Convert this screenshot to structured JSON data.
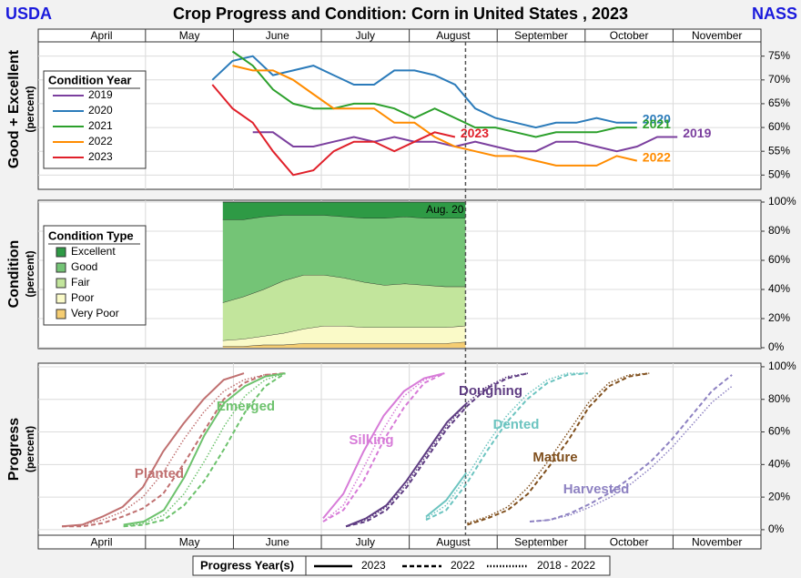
{
  "header": {
    "left": "USDA",
    "title": "Crop Progress and Condition: Corn in United States , 2023",
    "right": "NASS"
  },
  "chart_data": [
    {
      "type": "line",
      "ylabel": "Good + Excellent",
      "ylabel_sub": "(percent)",
      "legend_title": "Condition Year",
      "xlim": [
        3.78,
        12.0
      ],
      "xticks": [
        {
          "value": 4.5,
          "label": "April"
        },
        {
          "value": 5.5,
          "label": "May"
        },
        {
          "value": 6.5,
          "label": "June"
        },
        {
          "value": 7.5,
          "label": "July"
        },
        {
          "value": 8.5,
          "label": "August"
        },
        {
          "value": 9.5,
          "label": "September"
        },
        {
          "value": 10.5,
          "label": "October"
        },
        {
          "value": 11.5,
          "label": "November"
        }
      ],
      "ylim": [
        47,
        78
      ],
      "yticks": [
        {
          "value": 50,
          "label": "50%"
        },
        {
          "value": 55,
          "label": "55%"
        },
        {
          "value": 60,
          "label": "60%"
        },
        {
          "value": 65,
          "label": "65%"
        },
        {
          "value": 70,
          "label": "70%"
        },
        {
          "value": 75,
          "label": "75%"
        }
      ],
      "x": [
        5.76,
        5.99,
        6.22,
        6.45,
        6.68,
        6.91,
        7.14,
        7.37,
        7.6,
        7.83,
        8.06,
        8.29,
        8.52,
        8.75,
        8.98,
        9.21,
        9.44,
        9.67,
        9.9,
        10.13,
        10.36,
        10.59,
        10.82,
        11.05
      ],
      "series": [
        {
          "name": "2019",
          "color": "#7b3f9e",
          "values": [
            null,
            null,
            59,
            59,
            56,
            56,
            57,
            58,
            57,
            58,
            57,
            57,
            56,
            57,
            56,
            55,
            55,
            57,
            57,
            56,
            55,
            56,
            58,
            58
          ]
        },
        {
          "name": "2020",
          "color": "#2b7bba",
          "values": [
            70,
            74,
            75,
            71,
            72,
            73,
            71,
            69,
            69,
            72,
            72,
            71,
            69,
            64,
            62,
            61,
            60,
            61,
            61,
            62,
            61,
            61,
            null,
            null
          ]
        },
        {
          "name": "2021",
          "color": "#2ca02c",
          "values": [
            null,
            76,
            73,
            68,
            65,
            64,
            64,
            65,
            65,
            64,
            62,
            64,
            62,
            60,
            60,
            59,
            58,
            59,
            59,
            59,
            60,
            60,
            null,
            null
          ]
        },
        {
          "name": "2022",
          "color": "#ff8c00",
          "values": [
            null,
            73,
            72,
            72,
            70,
            67,
            64,
            64,
            64,
            61,
            61,
            58,
            56,
            55,
            54,
            54,
            53,
            52,
            52,
            52,
            54,
            53,
            null,
            null
          ]
        },
        {
          "name": "2023",
          "color": "#e0202a",
          "values": [
            69,
            64,
            61,
            55,
            50,
            51,
            55,
            57,
            57,
            55,
            57,
            59,
            58,
            null,
            null,
            null,
            null,
            null,
            null,
            null,
            null,
            null,
            null,
            null
          ]
        }
      ]
    },
    {
      "type": "stacked_area",
      "ylabel": "Condition",
      "ylabel_sub": "(percent)",
      "legend_title": "Condition Type",
      "annotation": "Aug. 20",
      "xlim": [
        3.78,
        12.0
      ],
      "ylim": [
        0,
        100
      ],
      "yticks": [
        {
          "value": 0,
          "label": "0%"
        },
        {
          "value": 20,
          "label": "20%"
        },
        {
          "value": 40,
          "label": "40%"
        },
        {
          "value": 60,
          "label": "60%"
        },
        {
          "value": 80,
          "label": "80%"
        },
        {
          "value": 100,
          "label": "100%"
        }
      ],
      "x": [
        5.88,
        6.11,
        6.34,
        6.57,
        6.8,
        7.03,
        7.26,
        7.49,
        7.72,
        7.95,
        8.18,
        8.41,
        8.64
      ],
      "series": [
        {
          "name": "Excellent",
          "color": "#2e9a45",
          "values": [
            12,
            12,
            10,
            9,
            9,
            9,
            10,
            11,
            11,
            10,
            11,
            11,
            11
          ]
        },
        {
          "name": "Good",
          "color": "#74c476",
          "values": [
            57,
            53,
            50,
            45,
            41,
            41,
            42,
            44,
            46,
            46,
            46,
            47,
            47
          ]
        },
        {
          "name": "Fair",
          "color": "#c2e59c",
          "values": [
            26,
            29,
            32,
            36,
            37,
            35,
            33,
            31,
            29,
            30,
            29,
            28,
            27
          ]
        },
        {
          "name": "Poor",
          "color": "#fafac8",
          "values": [
            4,
            5,
            6,
            8,
            10,
            12,
            12,
            11,
            11,
            11,
            11,
            11,
            11
          ]
        },
        {
          "name": "Very Poor",
          "color": "#f5cd72",
          "values": [
            1,
            1,
            2,
            2,
            3,
            3,
            3,
            3,
            3,
            3,
            3,
            3,
            4
          ]
        }
      ]
    },
    {
      "type": "progress",
      "ylabel": "Progress",
      "ylabel_sub": "(percent)",
      "legend_title": "Progress Year(s)",
      "xlim": [
        3.78,
        12.0
      ],
      "xticks": [
        {
          "value": 4.5,
          "label": "April"
        },
        {
          "value": 5.5,
          "label": "May"
        },
        {
          "value": 6.5,
          "label": "June"
        },
        {
          "value": 7.5,
          "label": "July"
        },
        {
          "value": 8.5,
          "label": "August"
        },
        {
          "value": 9.5,
          "label": "September"
        },
        {
          "value": 10.5,
          "label": "October"
        },
        {
          "value": 11.5,
          "label": "November"
        }
      ],
      "ylim": [
        -3.4,
        102.2
      ],
      "yticks": [
        {
          "value": 0,
          "label": "0%"
        },
        {
          "value": 20,
          "label": "20%"
        },
        {
          "value": 40,
          "label": "40%"
        },
        {
          "value": 60,
          "label": "60%"
        },
        {
          "value": 80,
          "label": "80%"
        },
        {
          "value": 100,
          "label": "100%"
        }
      ],
      "years": [
        {
          "name": "2023",
          "dash": "solid"
        },
        {
          "name": "2022",
          "dash": "dashed"
        },
        {
          "name": "2018 - 2022",
          "dash": "dotted"
        }
      ],
      "stages": [
        {
          "name": "Planted",
          "color": "#c07070",
          "x": [
            4.05,
            4.28,
            4.51,
            4.74,
            4.97,
            5.2,
            5.43,
            5.66,
            5.89,
            6.12,
            6.35,
            6.58
          ],
          "values": [
            [
              2,
              3,
              8,
              14,
              26,
              48,
              65,
              80,
              92,
              96,
              null,
              null
            ],
            [
              2,
              2,
              4,
              8,
              13,
              22,
              40,
              60,
              80,
              90,
              95,
              96
            ],
            [
              2,
              3,
              6,
              11,
              20,
              35,
              55,
              72,
              85,
              92,
              95,
              96
            ]
          ]
        },
        {
          "name": "Emerged",
          "color": "#6dc26d",
          "x": [
            4.75,
            4.98,
            5.21,
            5.44,
            5.67,
            5.9,
            6.13,
            6.36,
            6.59
          ],
          "values": [
            [
              3,
              5,
              12,
              32,
              58,
              78,
              88,
              94,
              96
            ],
            [
              2,
              3,
              6,
              15,
              30,
              50,
              72,
              88,
              96
            ],
            [
              2,
              4,
              9,
              22,
              42,
              64,
              82,
              92,
              96
            ]
          ]
        },
        {
          "name": "Silking",
          "color": "#d77bd8",
          "x": [
            7.02,
            7.25,
            7.48,
            7.71,
            7.94,
            8.17,
            8.4
          ],
          "values": [
            [
              7,
              22,
              48,
              70,
              85,
              93,
              96
            ],
            [
              5,
              12,
              30,
              55,
              75,
              90,
              96
            ],
            [
              5,
              15,
              38,
              62,
              82,
              92,
              96
            ]
          ]
        },
        {
          "name": "Doughing",
          "color": "#5e3c82",
          "x": [
            7.28,
            7.51,
            7.74,
            7.97,
            8.2,
            8.43,
            8.66,
            8.89,
            9.12,
            9.35
          ],
          "values": [
            [
              2,
              7,
              15,
              30,
              48,
              66,
              78,
              null,
              null,
              null
            ],
            [
              2,
              5,
              12,
              26,
              44,
              62,
              76,
              87,
              93,
              96
            ],
            [
              2,
              6,
              14,
              28,
              46,
              64,
              78,
              88,
              94,
              96
            ]
          ]
        },
        {
          "name": "Dented",
          "color": "#6cc4c0",
          "x": [
            8.19,
            8.42,
            8.65,
            8.88,
            9.11,
            9.34,
            9.57,
            9.8,
            10.03
          ],
          "values": [
            [
              8,
              18,
              35,
              null,
              null,
              null,
              null,
              null,
              null
            ],
            [
              6,
              12,
              28,
              48,
              66,
              80,
              90,
              95,
              96
            ],
            [
              7,
              15,
              32,
              52,
              70,
              83,
              92,
              96,
              96
            ]
          ]
        },
        {
          "name": "Mature",
          "color": "#80501e",
          "x": [
            8.66,
            8.89,
            9.12,
            9.35,
            9.58,
            9.81,
            10.04,
            10.27,
            10.5,
            10.73
          ],
          "values": [
            [
              null,
              null,
              null,
              null,
              null,
              null,
              null,
              null,
              null,
              null
            ],
            [
              3,
              7,
              12,
              22,
              38,
              55,
              75,
              88,
              94,
              96
            ],
            [
              4,
              8,
              14,
              26,
              42,
              60,
              78,
              90,
              95,
              96
            ]
          ]
        },
        {
          "name": "Harvested",
          "color": "#8e82c2",
          "x": [
            9.37,
            9.6,
            9.83,
            10.06,
            10.29,
            10.52,
            10.75,
            10.98,
            11.21,
            11.44,
            11.67
          ],
          "values": [
            [
              null,
              null,
              null,
              null,
              null,
              null,
              null,
              null,
              null,
              null,
              null
            ],
            [
              5,
              6,
              10,
              16,
              23,
              32,
              42,
              55,
              70,
              85,
              95
            ],
            [
              5,
              6,
              9,
              14,
              20,
              28,
              38,
              50,
              64,
              78,
              88
            ]
          ]
        }
      ]
    }
  ]
}
